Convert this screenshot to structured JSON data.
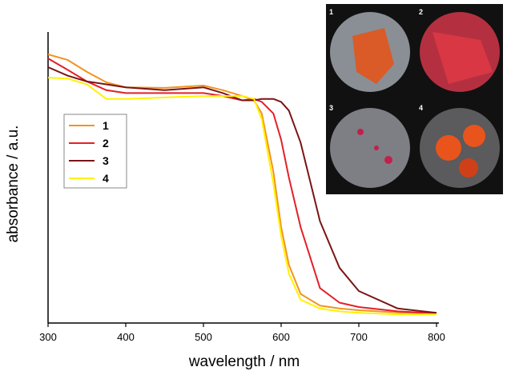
{
  "chart_data": {
    "type": "line",
    "x_label": "wavelength / nm",
    "y_label": "absorbance / a.u.",
    "x": [
      300,
      325,
      350,
      375,
      400,
      450,
      500,
      525,
      550,
      565,
      575,
      590,
      600,
      610,
      625,
      650,
      675,
      700,
      750,
      800
    ],
    "xlim": [
      300,
      800
    ],
    "xticks": [
      300,
      400,
      500,
      600,
      700,
      800
    ],
    "ylim": [
      0,
      1
    ],
    "series": [
      {
        "name": "1",
        "color": "#f39320",
        "values": [
          0.923,
          0.904,
          0.863,
          0.827,
          0.81,
          0.808,
          0.816,
          0.8,
          0.78,
          0.765,
          0.72,
          0.52,
          0.33,
          0.2,
          0.1,
          0.06,
          0.05,
          0.044,
          0.036,
          0.033
        ]
      },
      {
        "name": "2",
        "color": "#e32027",
        "values": [
          0.909,
          0.87,
          0.83,
          0.8,
          0.79,
          0.79,
          0.79,
          0.78,
          0.765,
          0.77,
          0.76,
          0.72,
          0.63,
          0.5,
          0.33,
          0.12,
          0.07,
          0.055,
          0.04,
          0.033
        ]
      },
      {
        "name": "3",
        "color": "#7a1414",
        "values": [
          0.879,
          0.85,
          0.83,
          0.82,
          0.81,
          0.8,
          0.81,
          0.79,
          0.765,
          0.765,
          0.77,
          0.77,
          0.76,
          0.73,
          0.62,
          0.35,
          0.19,
          0.11,
          0.05,
          0.035
        ]
      },
      {
        "name": "4",
        "color": "#fff200",
        "values": [
          0.843,
          0.84,
          0.82,
          0.77,
          0.77,
          0.775,
          0.78,
          0.78,
          0.78,
          0.77,
          0.7,
          0.48,
          0.3,
          0.17,
          0.08,
          0.05,
          0.04,
          0.035,
          0.03,
          0.03
        ]
      }
    ],
    "legend": "upper left"
  }
}
